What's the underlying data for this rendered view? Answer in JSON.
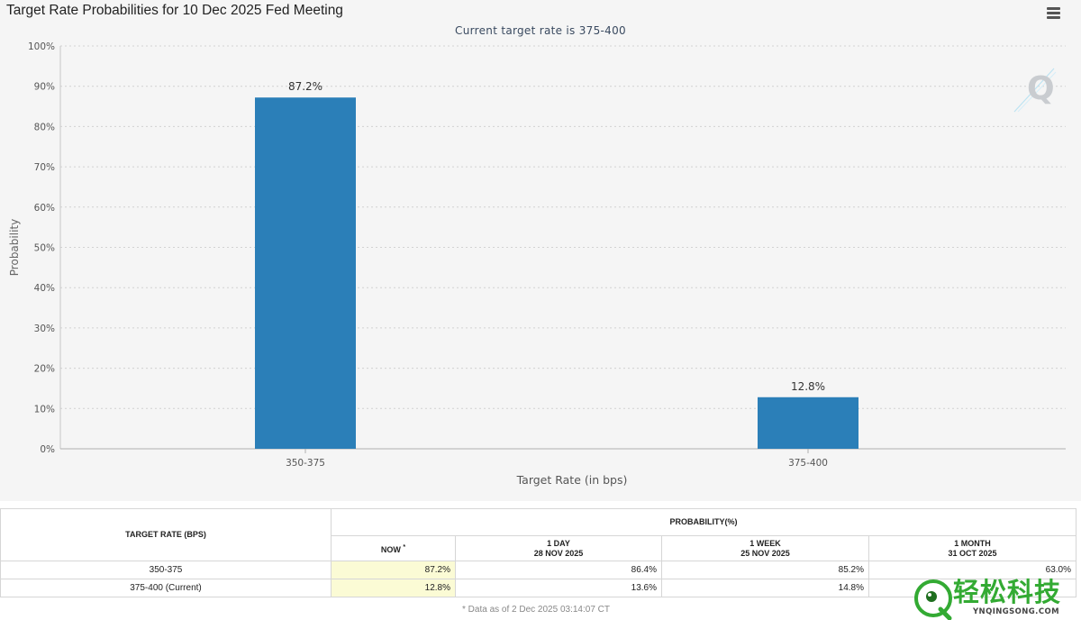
{
  "header": {
    "title": "Target Rate Probabilities for 10 Dec 2025 Fed Meeting",
    "subtitle": "Current target rate is 375-400"
  },
  "chart_data": {
    "type": "bar",
    "title": "Target Rate Probabilities for 10 Dec 2025 Fed Meeting",
    "subtitle": "Current target rate is 375-400",
    "categories": [
      "350-375",
      "375-400"
    ],
    "values": [
      87.2,
      12.8
    ],
    "data_labels": [
      "87.2%",
      "12.8%"
    ],
    "xlabel": "Target Rate (in bps)",
    "ylabel": "Probability",
    "ylim": [
      0,
      100
    ],
    "yticks": [
      "0%",
      "10%",
      "20%",
      "30%",
      "40%",
      "50%",
      "60%",
      "70%",
      "80%",
      "90%",
      "100%"
    ],
    "grid": true,
    "bar_color": "#2b7fb8"
  },
  "table": {
    "col_target": "TARGET RATE (BPS)",
    "col_probability": "PROBABILITY(%)",
    "col_now": "NOW",
    "now_marker": "*",
    "col_1day": "1 DAY",
    "col_1day_date": "28 NOV 2025",
    "col_1week": "1 WEEK",
    "col_1week_date": "25 NOV 2025",
    "col_1month": "1 MONTH",
    "col_1month_date": "31 OCT 2025",
    "rows": [
      {
        "rate": "350-375",
        "now": "87.2%",
        "day": "86.4%",
        "week": "85.2%",
        "month": "63.0%"
      },
      {
        "rate": "375-400 (Current)",
        "now": "12.8%",
        "day": "13.6%",
        "week": "14.8%",
        "month": ""
      }
    ],
    "footnote": "* Data as of 2 Dec 2025 03:14:07 CT"
  },
  "watermark": {
    "brand": "轻松科技",
    "domain": "YNQINGSONG.COM",
    "color": "#33aa33"
  }
}
